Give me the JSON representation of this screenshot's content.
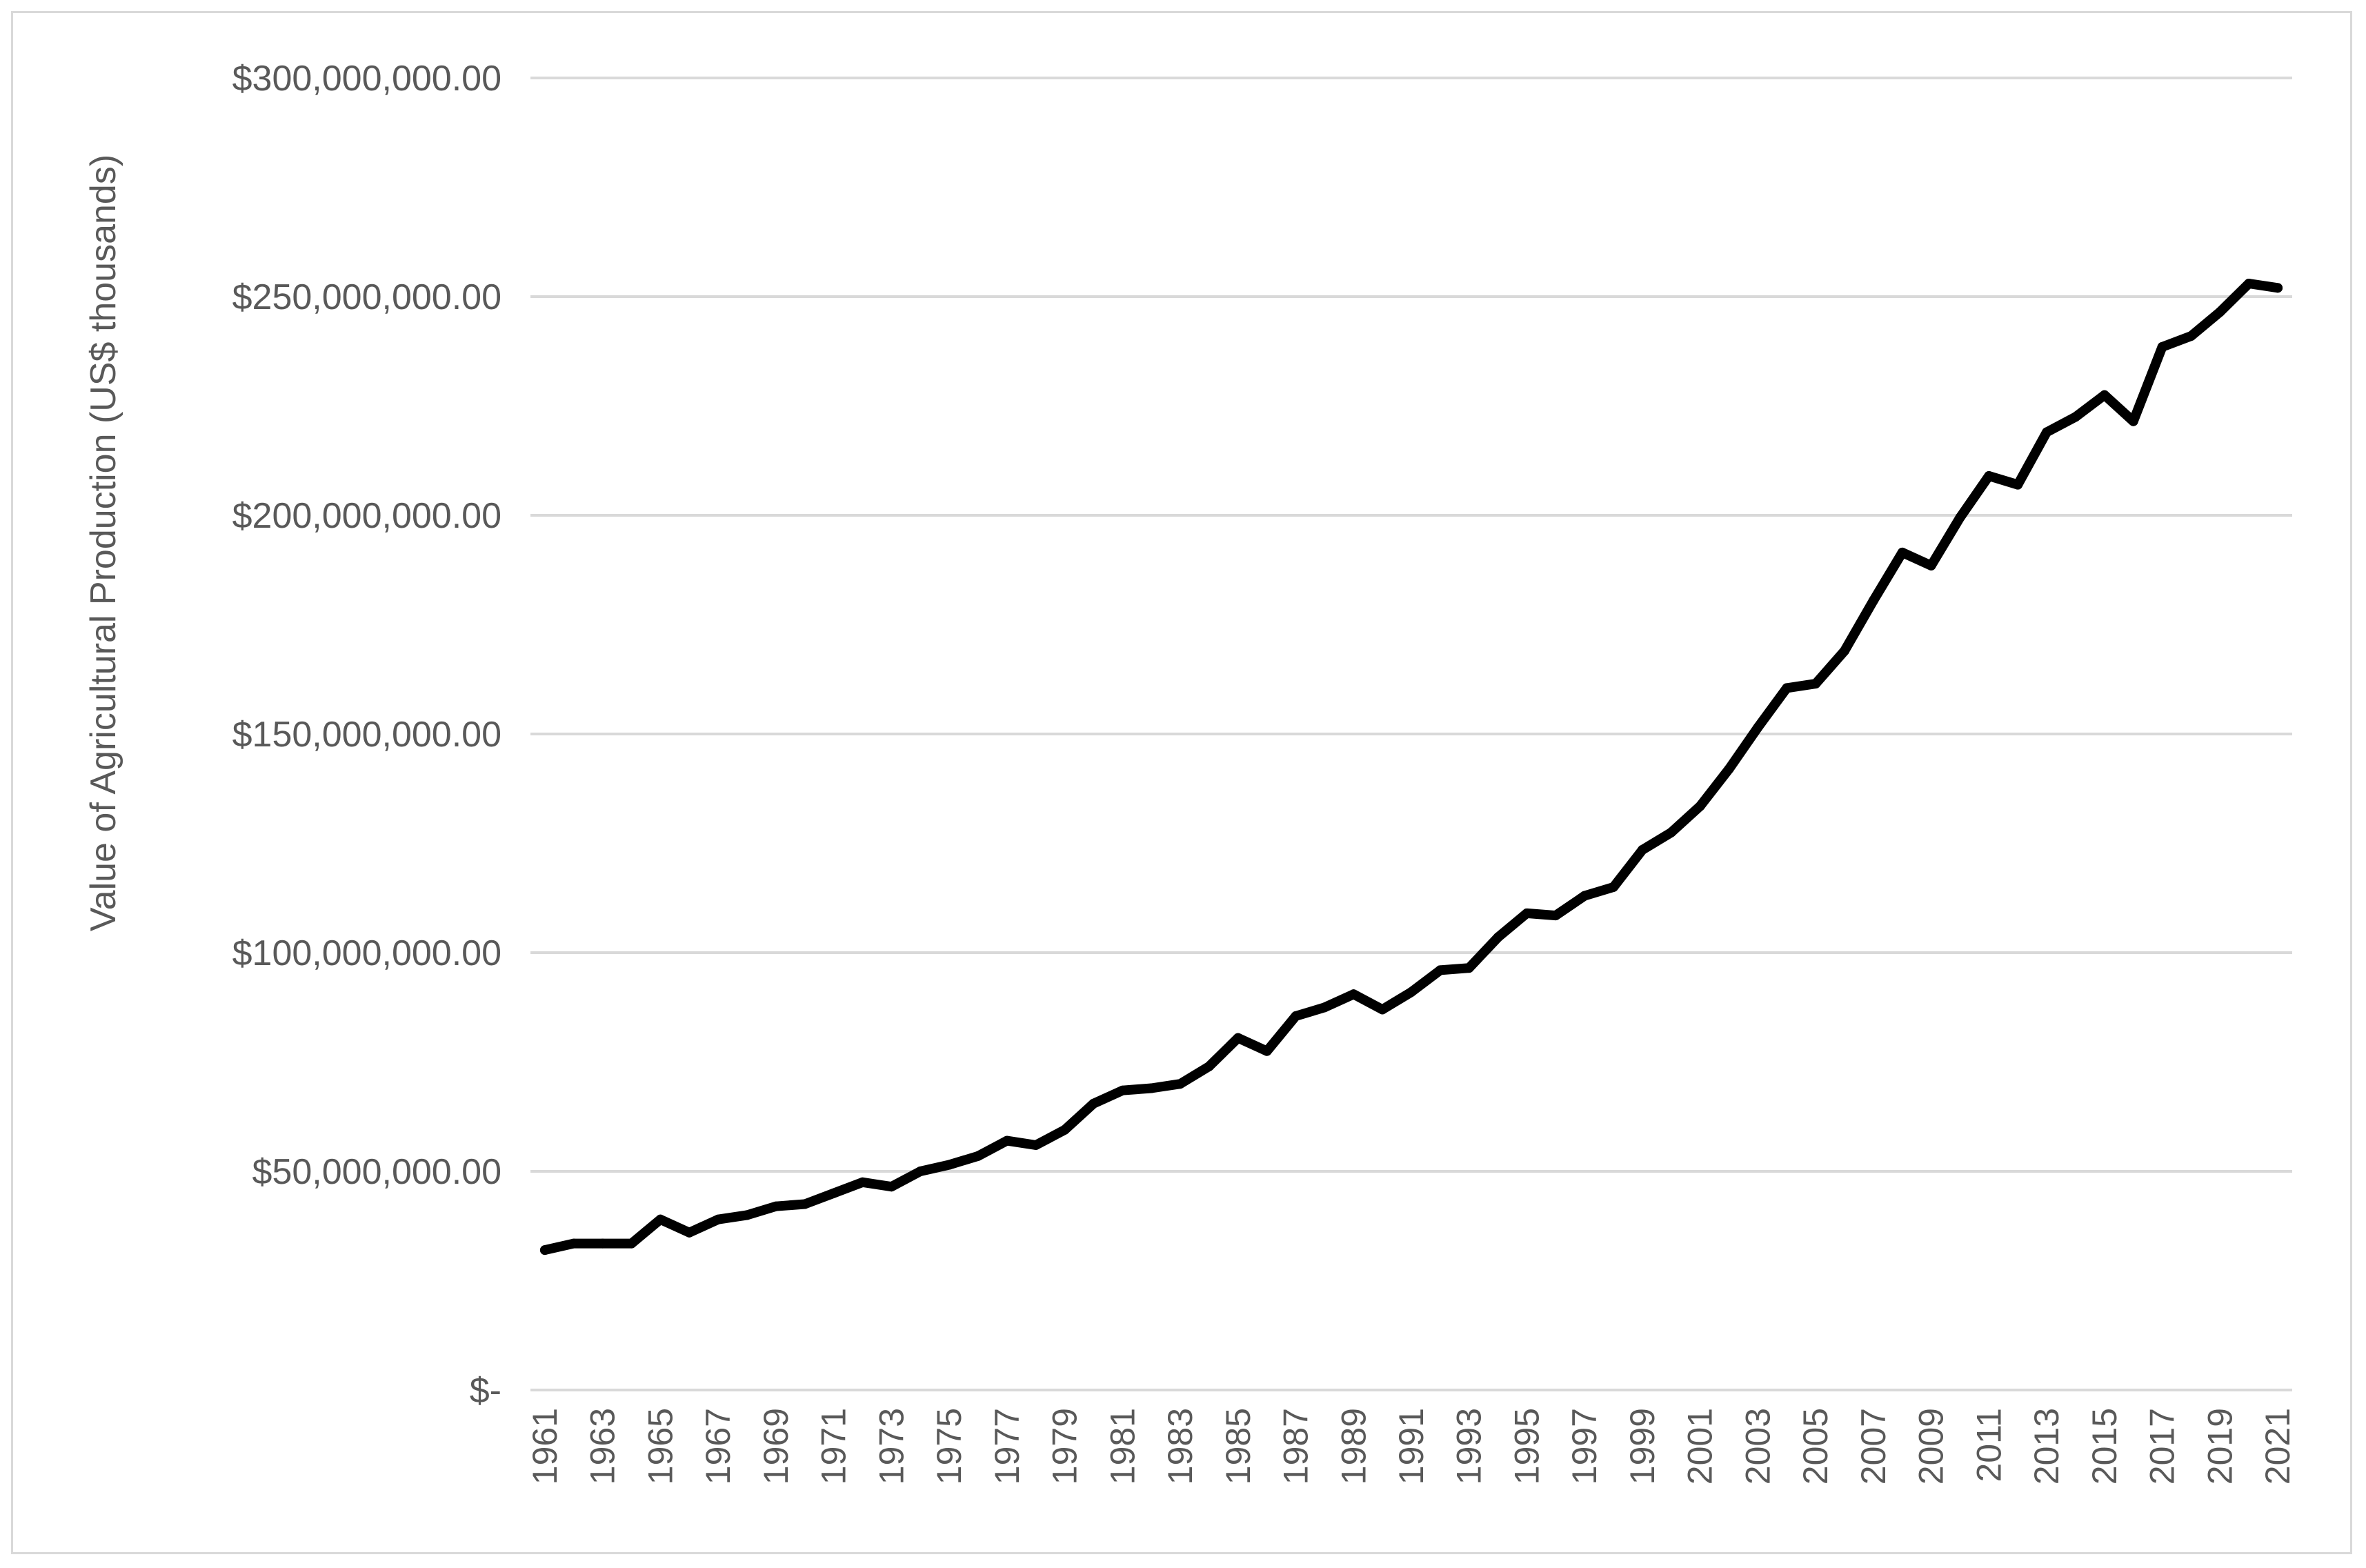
{
  "chart_data": {
    "type": "line",
    "title": "",
    "xlabel": "",
    "ylabel": "Value of Agricultural Production (US$ thousands)",
    "ylim": [
      0,
      300000000
    ],
    "y_ticks": [
      {
        "value": 0,
        "label": "$-"
      },
      {
        "value": 50000000,
        "label": "$50,000,000.00"
      },
      {
        "value": 100000000,
        "label": "$100,000,000.00"
      },
      {
        "value": 150000000,
        "label": "$150,000,000.00"
      },
      {
        "value": 200000000,
        "label": "$200,000,000.00"
      },
      {
        "value": 250000000,
        "label": "$250,000,000.00"
      },
      {
        "value": 300000000,
        "label": "$300,000,000.00"
      }
    ],
    "x_tick_labels": [
      "1961",
      "1963",
      "1965",
      "1967",
      "1969",
      "1971",
      "1973",
      "1975",
      "1977",
      "1979",
      "1981",
      "1983",
      "1985",
      "1987",
      "1989",
      "1991",
      "1993",
      "1995",
      "1997",
      "1999",
      "2001",
      "2003",
      "2005",
      "2007",
      "2009",
      "2011",
      "2013",
      "2015",
      "2017",
      "2019",
      "2021"
    ],
    "grid": true,
    "legend": "none",
    "line_color": "#000000",
    "grid_color": "#d9d9d9",
    "x": [
      1961,
      1962,
      1963,
      1964,
      1965,
      1966,
      1967,
      1968,
      1969,
      1970,
      1971,
      1972,
      1973,
      1974,
      1975,
      1976,
      1977,
      1978,
      1979,
      1980,
      1981,
      1982,
      1983,
      1984,
      1985,
      1986,
      1987,
      1988,
      1989,
      1990,
      1991,
      1992,
      1993,
      1994,
      1995,
      1996,
      1997,
      1998,
      1999,
      2000,
      2001,
      2002,
      2003,
      2004,
      2005,
      2006,
      2007,
      2008,
      2009,
      2010,
      2011,
      2012,
      2013,
      2014,
      2015,
      2016,
      2017,
      2018,
      2019,
      2020,
      2021
    ],
    "values": [
      32000000,
      33500000,
      33500000,
      33500000,
      39000000,
      36000000,
      39000000,
      40000000,
      42000000,
      42500000,
      45000000,
      47500000,
      46500000,
      50000000,
      51500000,
      53500000,
      57000000,
      56000000,
      59500000,
      65500000,
      68500000,
      69000000,
      70000000,
      74000000,
      80500000,
      77500000,
      85500000,
      87500000,
      90500000,
      87000000,
      91000000,
      96000000,
      96500000,
      103500000,
      109000000,
      108500000,
      113000000,
      115000000,
      123500000,
      127500000,
      133500000,
      142000000,
      151500000,
      160500000,
      161500000,
      169000000,
      180500000,
      191500000,
      188500000,
      199500000,
      209000000,
      207000000,
      219000000,
      222500000,
      227500000,
      221500000,
      238500000,
      241000000,
      246500000,
      253000000,
      252000000
    ]
  }
}
